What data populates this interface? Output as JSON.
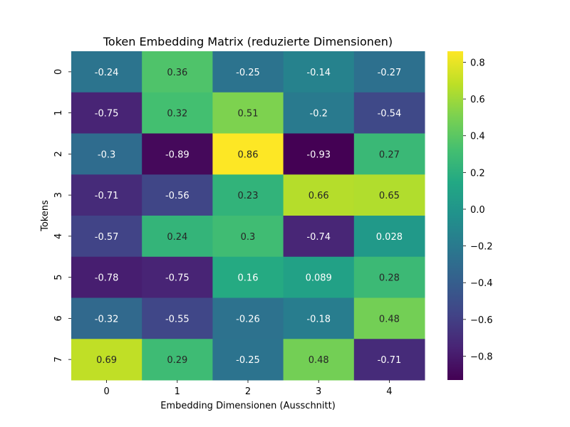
{
  "chart_data": {
    "type": "heatmap",
    "title": "Token Embedding Matrix (reduzierte Dimensionen)",
    "xlabel": "Embedding Dimensionen (Ausschnitt)",
    "ylabel": "Tokens",
    "x_categories": [
      "0",
      "1",
      "2",
      "3",
      "4"
    ],
    "y_categories": [
      "0",
      "1",
      "2",
      "3",
      "4",
      "5",
      "6",
      "7"
    ],
    "values": [
      [
        -0.24,
        0.36,
        -0.25,
        -0.14,
        -0.27
      ],
      [
        -0.75,
        0.32,
        0.51,
        -0.2,
        -0.54
      ],
      [
        -0.3,
        -0.89,
        0.86,
        -0.93,
        0.27
      ],
      [
        -0.71,
        -0.56,
        0.23,
        0.66,
        0.65
      ],
      [
        -0.57,
        0.24,
        0.3,
        -0.74,
        0.028
      ],
      [
        -0.78,
        -0.75,
        0.16,
        0.089,
        0.28
      ],
      [
        -0.32,
        -0.55,
        -0.26,
        -0.18,
        0.48
      ],
      [
        0.69,
        0.29,
        -0.25,
        0.48,
        -0.71
      ]
    ],
    "cell_labels": [
      [
        "-0.24",
        "0.36",
        "-0.25",
        "-0.14",
        "-0.27"
      ],
      [
        "-0.75",
        "0.32",
        "0.51",
        "-0.2",
        "-0.54"
      ],
      [
        "-0.3",
        "-0.89",
        "0.86",
        "-0.93",
        "0.27"
      ],
      [
        "-0.71",
        "-0.56",
        "0.23",
        "0.66",
        "0.65"
      ],
      [
        "-0.57",
        "0.24",
        "0.3",
        "-0.74",
        "0.028"
      ],
      [
        "-0.78",
        "-0.75",
        "0.16",
        "0.089",
        "0.28"
      ],
      [
        "-0.32",
        "-0.55",
        "-0.26",
        "-0.18",
        "0.48"
      ],
      [
        "0.69",
        "0.29",
        "-0.25",
        "0.48",
        "-0.71"
      ]
    ],
    "colormap": "viridis",
    "vmin": -0.93,
    "vmax": 0.86,
    "colorbar_ticks": [
      0.8,
      0.6,
      0.4,
      0.2,
      0.0,
      -0.2,
      -0.4,
      -0.6,
      -0.8
    ],
    "colorbar_tick_labels": [
      "0.8",
      "0.6",
      "0.4",
      "0.2",
      "0.0",
      "−0.2",
      "−0.4",
      "−0.6",
      "−0.8"
    ],
    "grid": false
  }
}
